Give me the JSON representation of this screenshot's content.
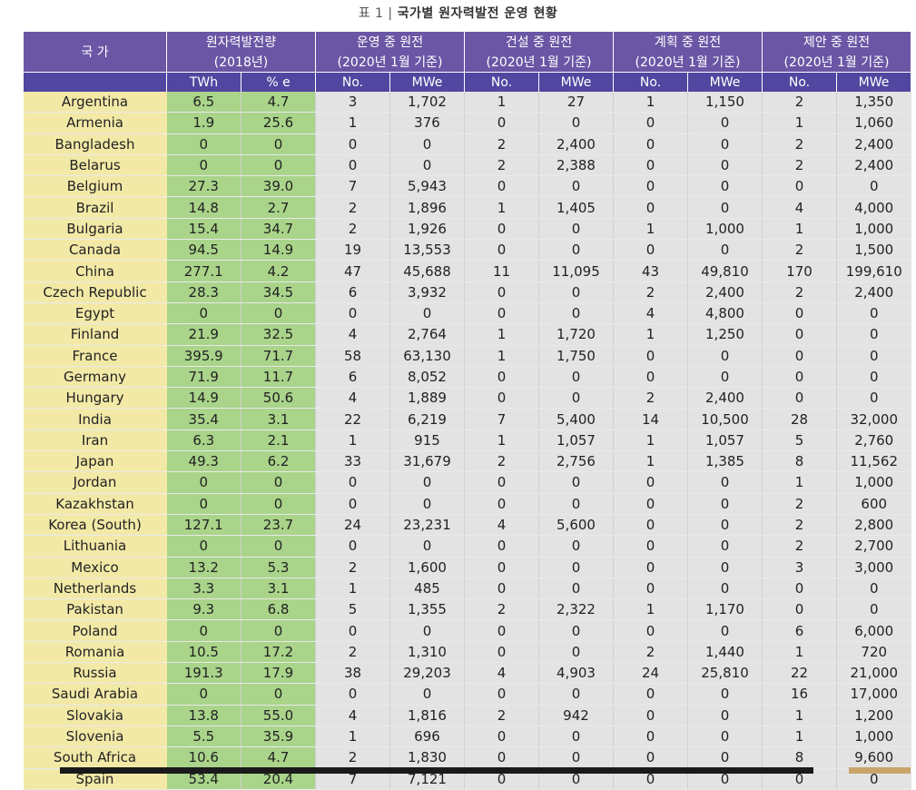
{
  "title": {
    "prefix": "표 1 ",
    "sep": "| ",
    "text": "국가별 원자력발전 운영 현황"
  },
  "header": {
    "country": "국 가",
    "gen_line1": "원자력발전량",
    "gen_line2": "(2018년)",
    "groups": [
      {
        "line1": "운영 중 원전",
        "line2": "(2020년 1월 기준)"
      },
      {
        "line1": "건설 중 원전",
        "line2": "(2020년 1월 기준)"
      },
      {
        "line1": "계획 중 원전",
        "line2": "(2020년 1월 기준)"
      },
      {
        "line1": "제안 중 원전",
        "line2": "(2020년 1월 기준)"
      }
    ],
    "sub": [
      "TWh",
      "% e",
      "No.",
      "MWe",
      "No.",
      "MWe",
      "No.",
      "MWe",
      "No.",
      "MWe"
    ]
  },
  "rows": [
    [
      "Argentina",
      "6.5",
      "4.7",
      "3",
      "1,702",
      "1",
      "27",
      "1",
      "1,150",
      "2",
      "1,350"
    ],
    [
      "Armenia",
      "1.9",
      "25.6",
      "1",
      "376",
      "0",
      "0",
      "0",
      "0",
      "1",
      "1,060"
    ],
    [
      "Bangladesh",
      "0",
      "0",
      "0",
      "0",
      "2",
      "2,400",
      "0",
      "0",
      "2",
      "2,400"
    ],
    [
      "Belarus",
      "0",
      "0",
      "0",
      "0",
      "2",
      "2,388",
      "0",
      "0",
      "2",
      "2,400"
    ],
    [
      "Belgium",
      "27.3",
      "39.0",
      "7",
      "5,943",
      "0",
      "0",
      "0",
      "0",
      "0",
      "0"
    ],
    [
      "Brazil",
      "14.8",
      "2.7",
      "2",
      "1,896",
      "1",
      "1,405",
      "0",
      "0",
      "4",
      "4,000"
    ],
    [
      "Bulgaria",
      "15.4",
      "34.7",
      "2",
      "1,926",
      "0",
      "0",
      "1",
      "1,000",
      "1",
      "1,000"
    ],
    [
      "Canada",
      "94.5",
      "14.9",
      "19",
      "13,553",
      "0",
      "0",
      "0",
      "0",
      "2",
      "1,500"
    ],
    [
      "China",
      "277.1",
      "4.2",
      "47",
      "45,688",
      "11",
      "11,095",
      "43",
      "49,810",
      "170",
      "199,610"
    ],
    [
      "Czech Republic",
      "28.3",
      "34.5",
      "6",
      "3,932",
      "0",
      "0",
      "2",
      "2,400",
      "2",
      "2,400"
    ],
    [
      "Egypt",
      "0",
      "0",
      "0",
      "0",
      "0",
      "0",
      "4",
      "4,800",
      "0",
      "0"
    ],
    [
      "Finland",
      "21.9",
      "32.5",
      "4",
      "2,764",
      "1",
      "1,720",
      "1",
      "1,250",
      "0",
      "0"
    ],
    [
      "France",
      "395.9",
      "71.7",
      "58",
      "63,130",
      "1",
      "1,750",
      "0",
      "0",
      "0",
      "0"
    ],
    [
      "Germany",
      "71.9",
      "11.7",
      "6",
      "8,052",
      "0",
      "0",
      "0",
      "0",
      "0",
      "0"
    ],
    [
      "Hungary",
      "14.9",
      "50.6",
      "4",
      "1,889",
      "0",
      "0",
      "2",
      "2,400",
      "0",
      "0"
    ],
    [
      "India",
      "35.4",
      "3.1",
      "22",
      "6,219",
      "7",
      "5,400",
      "14",
      "10,500",
      "28",
      "32,000"
    ],
    [
      "Iran",
      "6.3",
      "2.1",
      "1",
      "915",
      "1",
      "1,057",
      "1",
      "1,057",
      "5",
      "2,760"
    ],
    [
      "Japan",
      "49.3",
      "6.2",
      "33",
      "31,679",
      "2",
      "2,756",
      "1",
      "1,385",
      "8",
      "11,562"
    ],
    [
      "Jordan",
      "0",
      "0",
      "0",
      "0",
      "0",
      "0",
      "0",
      "0",
      "1",
      "1,000"
    ],
    [
      "Kazakhstan",
      "0",
      "0",
      "0",
      "0",
      "0",
      "0",
      "0",
      "0",
      "2",
      "600"
    ],
    [
      "Korea (South)",
      "127.1",
      "23.7",
      "24",
      "23,231",
      "4",
      "5,600",
      "0",
      "0",
      "2",
      "2,800"
    ],
    [
      "Lithuania",
      "0",
      "0",
      "0",
      "0",
      "0",
      "0",
      "0",
      "0",
      "2",
      "2,700"
    ],
    [
      "Mexico",
      "13.2",
      "5.3",
      "2",
      "1,600",
      "0",
      "0",
      "0",
      "0",
      "3",
      "3,000"
    ],
    [
      "Netherlands",
      "3.3",
      "3.1",
      "1",
      "485",
      "0",
      "0",
      "0",
      "0",
      "0",
      "0"
    ],
    [
      "Pakistan",
      "9.3",
      "6.8",
      "5",
      "1,355",
      "2",
      "2,322",
      "1",
      "1,170",
      "0",
      "0"
    ],
    [
      "Poland",
      "0",
      "0",
      "0",
      "0",
      "0",
      "0",
      "0",
      "0",
      "6",
      "6,000"
    ],
    [
      "Romania",
      "10.5",
      "17.2",
      "2",
      "1,310",
      "0",
      "0",
      "2",
      "1,440",
      "1",
      "720"
    ],
    [
      "Russia",
      "191.3",
      "17.9",
      "38",
      "29,203",
      "4",
      "4,903",
      "24",
      "25,810",
      "22",
      "21,000"
    ],
    [
      "Saudi Arabia",
      "0",
      "0",
      "0",
      "0",
      "0",
      "0",
      "0",
      "0",
      "16",
      "17,000"
    ],
    [
      "Slovakia",
      "13.8",
      "55.0",
      "4",
      "1,816",
      "2",
      "942",
      "0",
      "0",
      "1",
      "1,200"
    ],
    [
      "Slovenia",
      "5.5",
      "35.9",
      "1",
      "696",
      "0",
      "0",
      "0",
      "0",
      "1",
      "1,000"
    ],
    [
      "South Africa",
      "10.6",
      "4.7",
      "2",
      "1,830",
      "0",
      "0",
      "0",
      "0",
      "8",
      "9,600"
    ],
    [
      "Spain",
      "53.4",
      "20.4",
      "7",
      "7,121",
      "0",
      "0",
      "0",
      "0",
      "0",
      "0"
    ]
  ]
}
